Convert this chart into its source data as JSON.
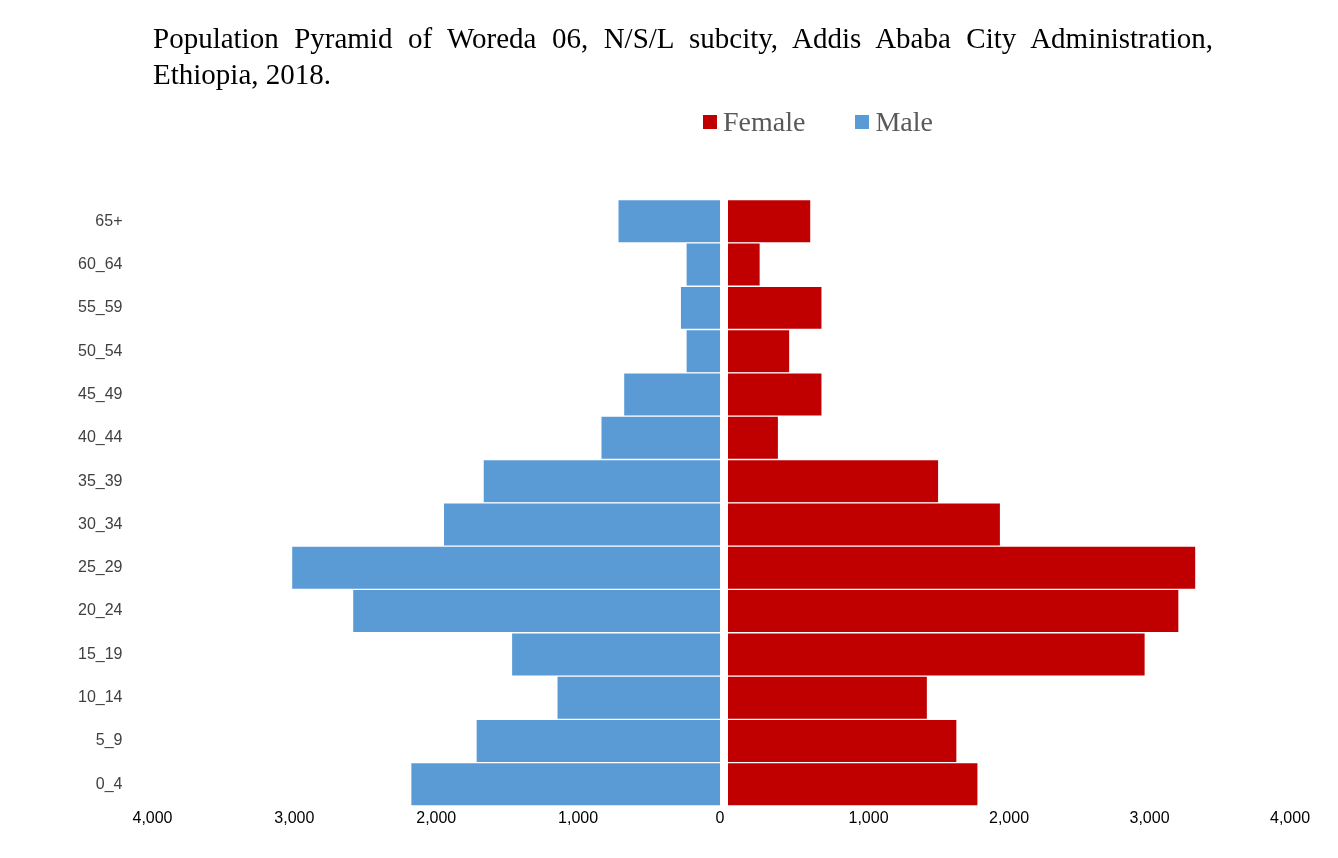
{
  "chart_data": [
    {
      "type": "bar",
      "orientation": "horizontal",
      "title": "Population Pyramid of Woreda 06, N/S/L subcity, Addis Ababa City Administration, Ethiopia, 2018.",
      "categories": [
        "65+",
        "60_64",
        "55_59",
        "50_54",
        "45_49",
        "40_44",
        "35_39",
        "30_34",
        "25_29",
        "20_24",
        "15_19",
        "10_14",
        "5_9",
        "0_4"
      ],
      "series": [
        {
          "name": "Male",
          "color": "#5b9bd5",
          "values": [
            720,
            240,
            280,
            240,
            680,
            840,
            1670,
            1950,
            3020,
            2590,
            1470,
            1150,
            1720,
            2180
          ]
        }
      ],
      "xlim": [
        4000,
        0
      ],
      "xticks": [
        {
          "value": 4000,
          "label": "4,000"
        },
        {
          "value": 3000,
          "label": "3,000"
        },
        {
          "value": 2000,
          "label": "2,000"
        },
        {
          "value": 1000,
          "label": "1,000"
        },
        0
      ],
      "grid": false,
      "legend": "top"
    },
    {
      "type": "bar",
      "orientation": "horizontal",
      "categories": [
        null,
        null,
        null,
        null,
        null,
        null,
        null,
        null,
        null,
        null,
        null,
        null,
        null,
        null
      ],
      "series": [
        {
          "name": "Female",
          "color": "#c00000",
          "values": [
            590,
            230,
            670,
            440,
            670,
            360,
            1500,
            1940,
            3330,
            3210,
            2970,
            1420,
            1630,
            1780
          ]
        }
      ],
      "xlim": [
        0,
        4000
      ],
      "xticks": [
        {
          "value": 1000,
          "label": "1,000"
        },
        {
          "value": 2000,
          "label": "2,000"
        },
        {
          "value": 3000,
          "label": "3,000"
        },
        {
          "value": 4000,
          "label": "4,000"
        }
      ],
      "grid": false,
      "legend": "top",
      "tick_labels": "x"
    }
  ]
}
